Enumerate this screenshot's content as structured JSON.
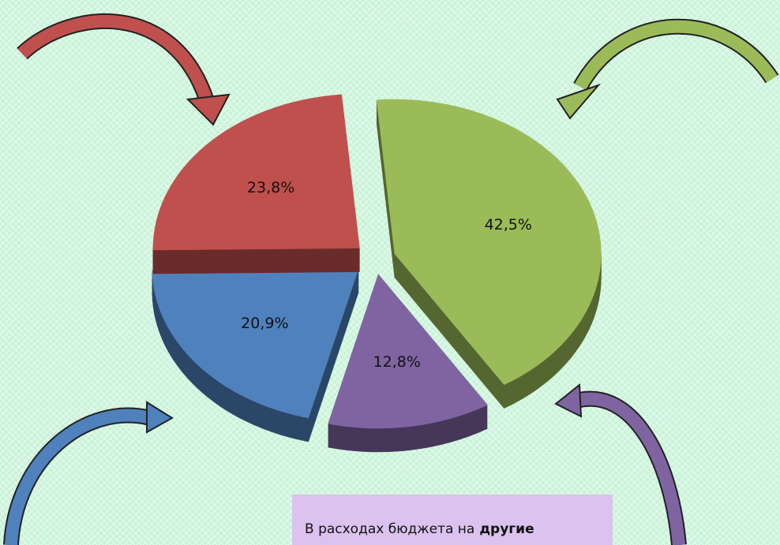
{
  "chart_data": {
    "type": "pie",
    "values": [
      42.5,
      12.8,
      20.9,
      23.8
    ],
    "value_labels": [
      "42,5%",
      "12,8%",
      "20,9%",
      "23,8%"
    ],
    "colors": [
      "#9bbb59",
      "#8064a2",
      "#4f81bd",
      "#c0504d"
    ],
    "annotation": {
      "text": "В расходах бюджета на",
      "bold": "другие"
    }
  }
}
